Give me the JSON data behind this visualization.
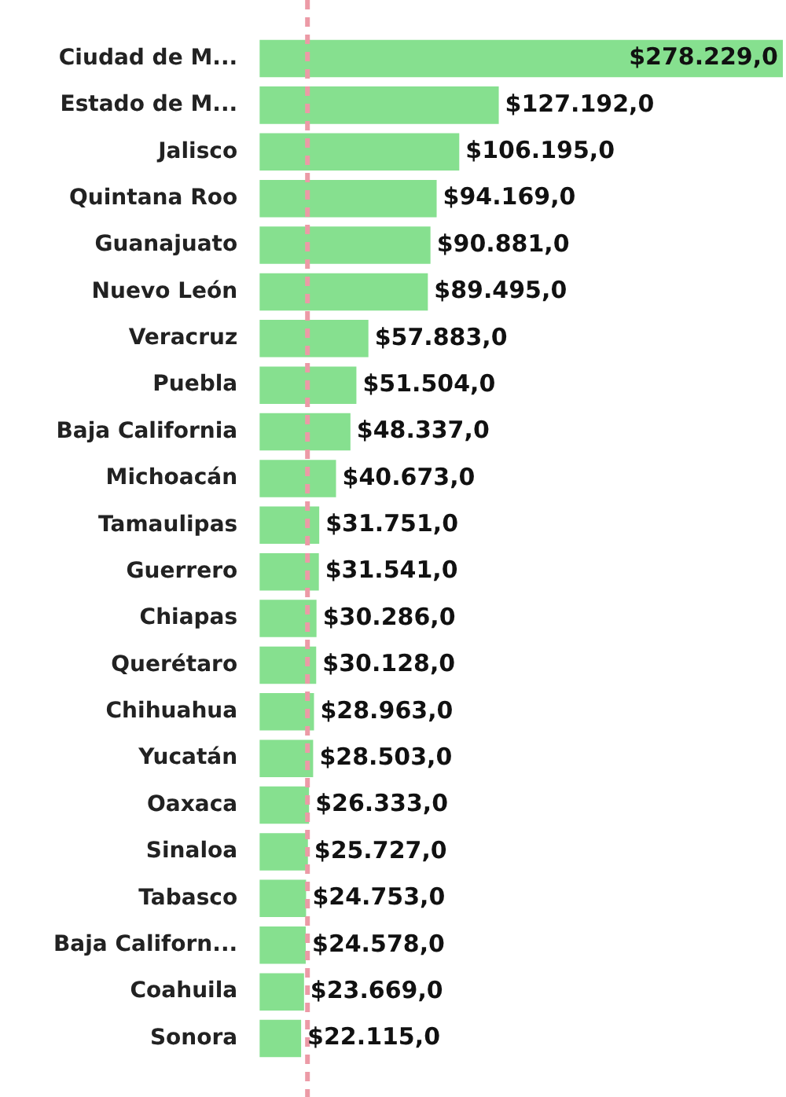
{
  "chart_data": {
    "type": "bar",
    "orientation": "horizontal",
    "categories": [
      "Ciudad de M...",
      "Estado de M...",
      "Jalisco",
      "Quintana Roo",
      "Guanajuato",
      "Nuevo León",
      "Veracruz",
      "Puebla",
      "Baja California",
      "Michoacán",
      "Tamaulipas",
      "Guerrero",
      "Chiapas",
      "Querétaro",
      "Chihuahua",
      "Yucatán",
      "Oaxaca",
      "Sinaloa",
      "Tabasco",
      "Baja Californ...",
      "Coahuila",
      "Sonora"
    ],
    "values": [
      278229.0,
      127192.0,
      106195.0,
      94169.0,
      90881.0,
      89495.0,
      57883.0,
      51504.0,
      48337.0,
      40673.0,
      31751.0,
      31541.0,
      30286.0,
      30128.0,
      28963.0,
      28503.0,
      26333.0,
      25727.0,
      24753.0,
      24578.0,
      23669.0,
      22115.0
    ],
    "value_labels": [
      "$278.229,0",
      "$127.192,0",
      "$106.195,0",
      "$94.169,0",
      "$90.881,0",
      "$89.495,0",
      "$57.883,0",
      "$51.504,0",
      "$48.337,0",
      "$40.673,0",
      "$31.751,0",
      "$31.541,0",
      "$30.286,0",
      "$30.128,0",
      "$28.963,0",
      "$28.503,0",
      "$26.333,0",
      "$25.727,0",
      "$24.753,0",
      "$24.578,0",
      "$23.669,0",
      "$22.115,0"
    ],
    "color": "#86e08f",
    "ref_lines": [
      {
        "axis": "x",
        "value": 25500,
        "color": "#ec9aa6",
        "line_style": "dashed"
      }
    ],
    "grid": false,
    "legend": false
  }
}
